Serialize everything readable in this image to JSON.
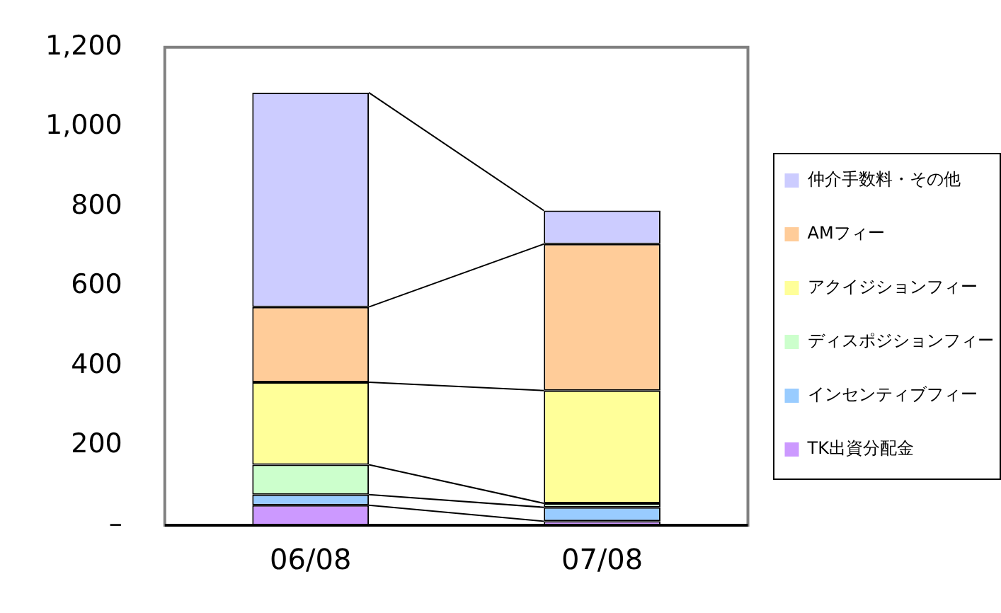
{
  "chart_data": {
    "type": "bar",
    "stacked": true,
    "categories": [
      "06/08",
      "07/08"
    ],
    "series": [
      {
        "name": "TK出資分配金",
        "color": "#cc99ff",
        "values": [
          50,
          10
        ]
      },
      {
        "name": "インセンティブフィー",
        "color": "#99ccff",
        "values": [
          27,
          35
        ]
      },
      {
        "name": "ディスポジションフィー",
        "color": "#ccffcc",
        "values": [
          75,
          10
        ]
      },
      {
        "name": "アクイジションフィー",
        "color": "#ffff99",
        "values": [
          207,
          283
        ]
      },
      {
        "name": "AMフィー",
        "color": "#ffcc99",
        "values": [
          189,
          368
        ]
      },
      {
        "name": "仲介手数料・その他",
        "color": "#ccccff",
        "values": [
          538,
          84
        ]
      }
    ],
    "ylim": [
      0,
      1200
    ],
    "yticks": [
      {
        "value": 0,
        "label": "–"
      },
      {
        "value": 200,
        "label": "200"
      },
      {
        "value": 400,
        "label": "400"
      },
      {
        "value": 600,
        "label": "600"
      },
      {
        "value": 800,
        "label": "800"
      },
      {
        "value": 1000,
        "label": "1,000"
      },
      {
        "value": 1200,
        "label": "1,200"
      }
    ],
    "grid": false,
    "legend": "right"
  }
}
